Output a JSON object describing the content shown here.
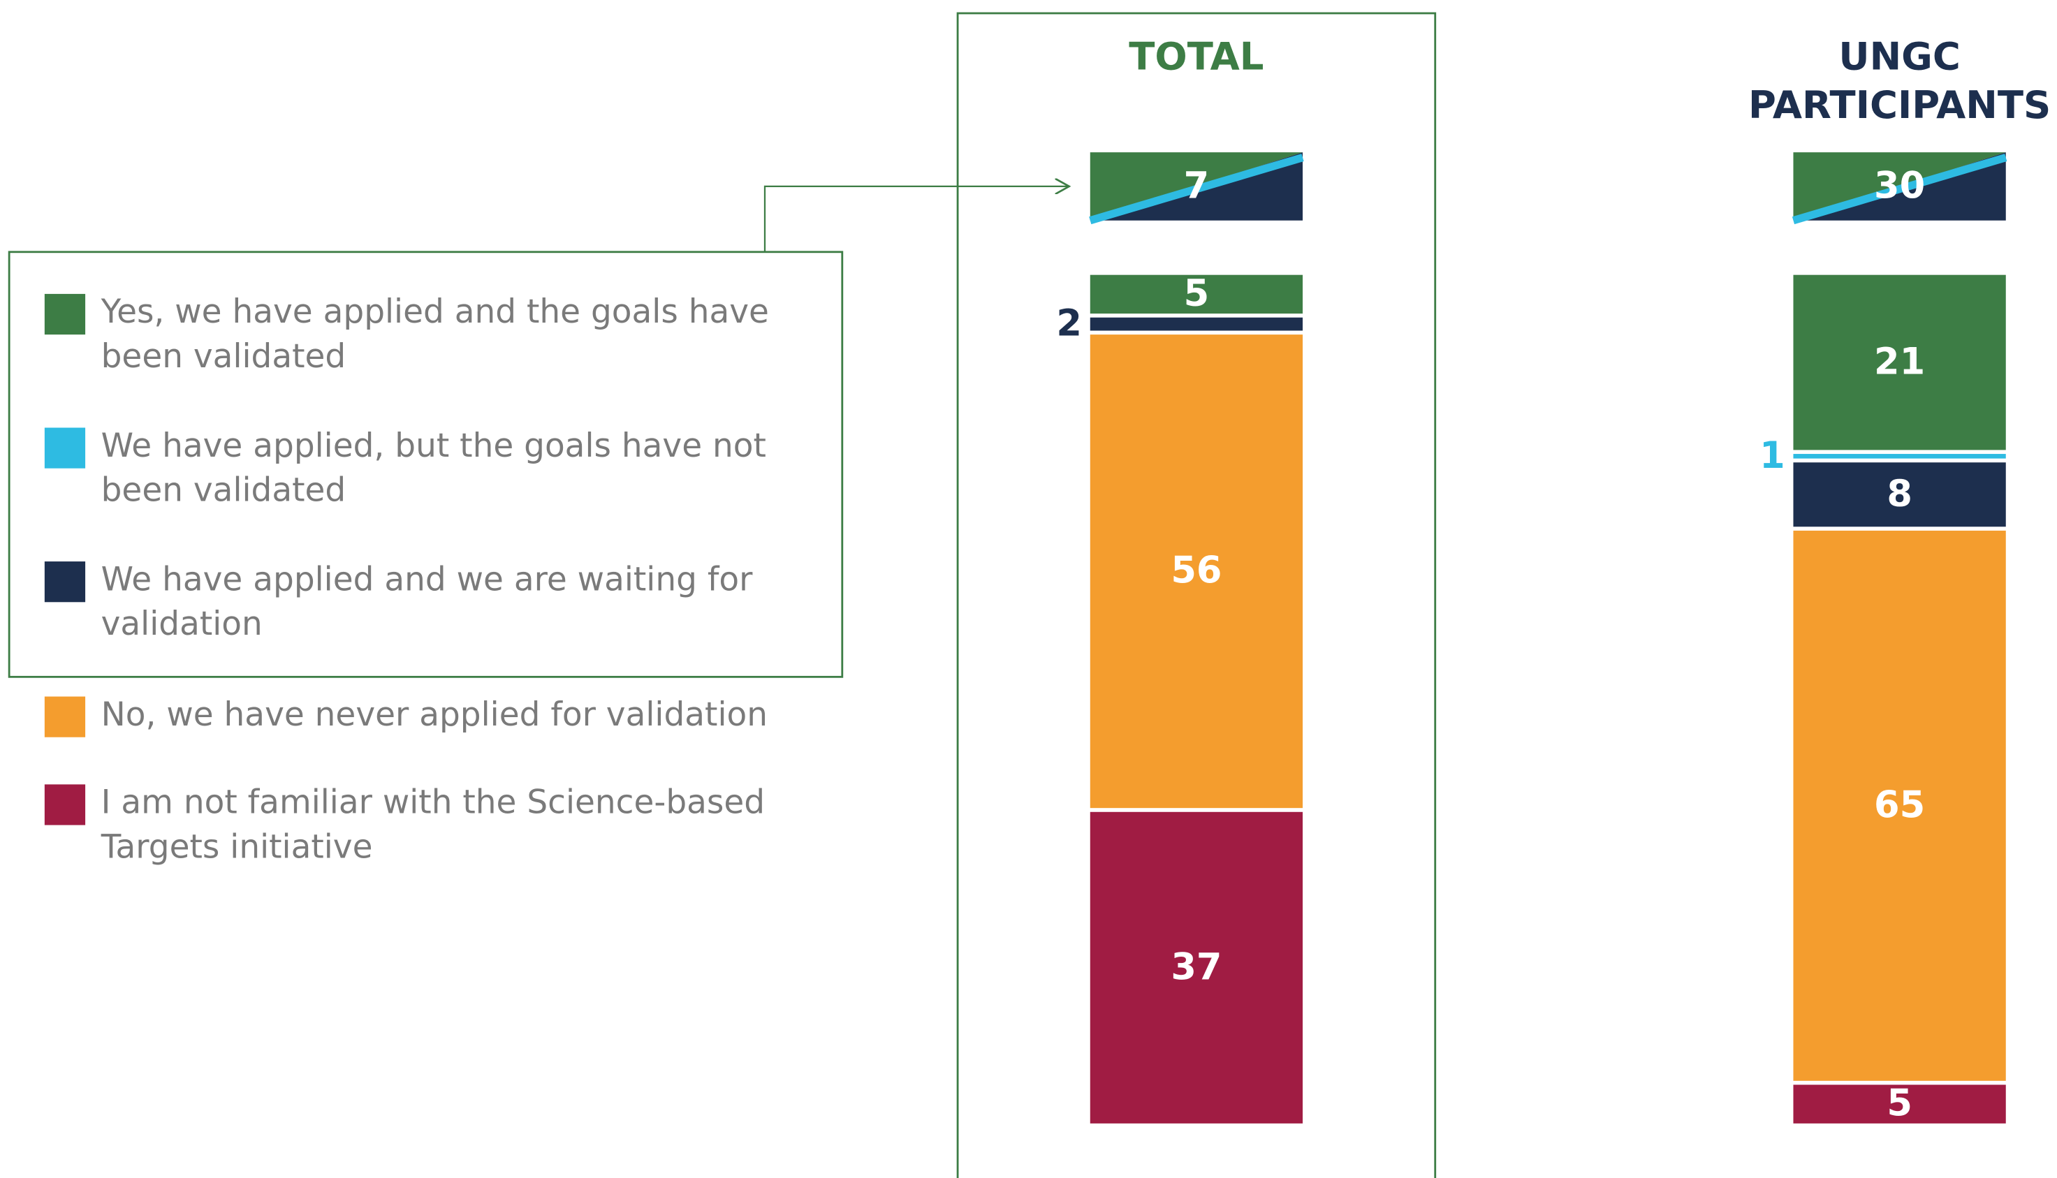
{
  "chart_data": {
    "type": "stacked_bar",
    "categories": [
      "TOTAL",
      "UNGC PARTICIPANTS"
    ],
    "category_colors": [
      "#3d7d45",
      "#1d2f4e"
    ],
    "series": [
      {
        "name": "Yes, we have applied and the goals have been validated",
        "color": "#3d7d45",
        "values": [
          5,
          21
        ]
      },
      {
        "name": "We have applied, but the goals have not been validated",
        "color": "#2ebbe2",
        "values": [
          null,
          1
        ]
      },
      {
        "name": "We have applied and we are waiting for validation",
        "color": "#1d2f4e",
        "values": [
          2,
          8
        ]
      },
      {
        "name": "No, we have never applied for validation",
        "color": "#f49d2e",
        "values": [
          56,
          65
        ]
      },
      {
        "name": "I am not familiar with the Science-based Targets initiative",
        "color": "#a01c43",
        "values": [
          37,
          5
        ]
      }
    ],
    "summary_values": [
      7,
      30
    ],
    "ylim": [
      0,
      100
    ]
  }
}
